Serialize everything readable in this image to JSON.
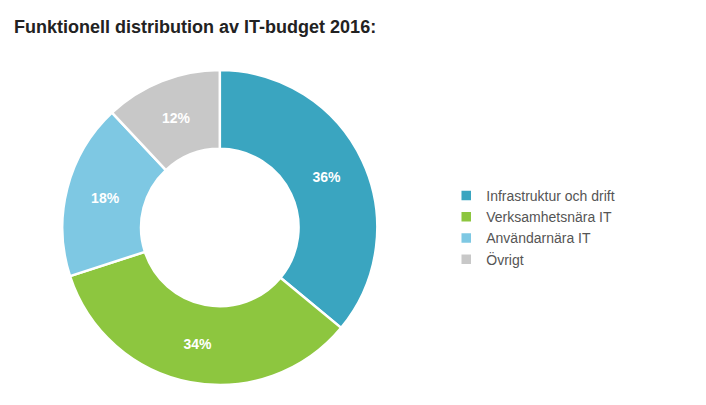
{
  "chart_data": {
    "type": "pie",
    "title": "Funktionell distribution av IT-budget 2016:",
    "categories": [
      "Infrastruktur och drift",
      "Verksamhetsnära IT",
      "Användarnära IT",
      "Övrigt"
    ],
    "values": [
      36,
      34,
      18,
      12
    ],
    "value_labels": [
      "36%",
      "34%",
      "18%",
      "12%"
    ],
    "colors": [
      "#3aa5c0",
      "#8dc63f",
      "#7ec8e3",
      "#c8c8c8"
    ],
    "data_labels": true,
    "legend": "right"
  }
}
